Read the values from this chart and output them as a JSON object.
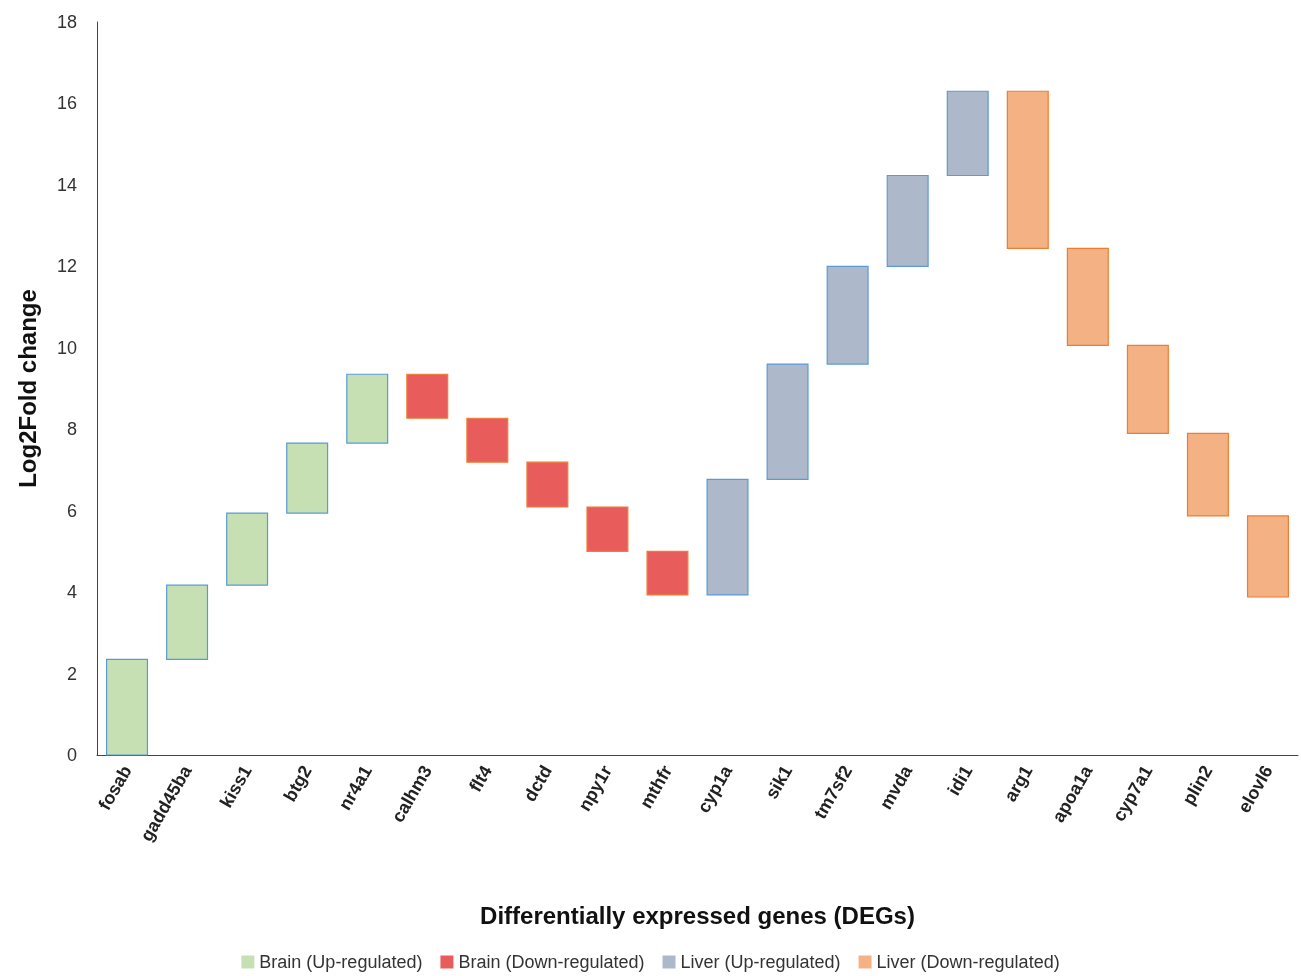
{
  "chart_data": {
    "type": "bar",
    "xlabel": "Differentially expressed genes (DEGs)",
    "ylabel": "Log2Fold change",
    "categories": [
      "fosab",
      "gadd45ba",
      "kiss1",
      "btg2",
      "nr4a1",
      "calhm3",
      "flt4",
      "dctd",
      "npy1r",
      "mthfr",
      "cyp1a",
      "sik1",
      "tm7sf2",
      "mvda",
      "idi1",
      "arg1",
      "apoa1a",
      "cyp7a1",
      "plin2",
      "elovl6"
    ],
    "ylim": [
      0,
      18
    ],
    "yticks": [
      0,
      2,
      4,
      6,
      8,
      10,
      12,
      14,
      16,
      18
    ],
    "grid": false,
    "legend": "bottom",
    "series": [
      {
        "name": "Brain (Up-regulated)",
        "color": "#c6e0b4",
        "base": [
          0,
          2.35,
          4.17,
          5.94,
          7.66,
          null,
          null,
          null,
          null,
          null,
          null,
          null,
          null,
          null,
          null,
          null,
          null,
          null,
          null,
          null
        ],
        "values": [
          2.35,
          1.82,
          1.77,
          1.72,
          1.69,
          null,
          null,
          null,
          null,
          null,
          null,
          null,
          null,
          null,
          null,
          null,
          null,
          null,
          null,
          null
        ]
      },
      {
        "name": "Brain (Down-regulated)",
        "color": "#e85c5c",
        "base": [
          null,
          null,
          null,
          null,
          null,
          9.35,
          8.27,
          7.19,
          6.09,
          5.0,
          null,
          null,
          null,
          null,
          null,
          null,
          null,
          null,
          null,
          null
        ],
        "values": [
          null,
          null,
          null,
          null,
          null,
          -1.08,
          -1.08,
          -1.1,
          -1.09,
          -1.07,
          null,
          null,
          null,
          null,
          null,
          null,
          null,
          null,
          null,
          null
        ]
      },
      {
        "name": "Liver (Up-regulated)",
        "color": "#adb9ca",
        "base": [
          null,
          null,
          null,
          null,
          null,
          null,
          null,
          null,
          null,
          null,
          3.93,
          6.77,
          9.6,
          12.0,
          14.23,
          null,
          null,
          null,
          null,
          null
        ],
        "values": [
          null,
          null,
          null,
          null,
          null,
          null,
          null,
          null,
          null,
          null,
          2.84,
          2.83,
          2.4,
          2.23,
          2.07,
          null,
          null,
          null,
          null,
          null
        ]
      },
      {
        "name": "Liver (Down-regulated)",
        "color": "#f4b183",
        "base": [
          null,
          null,
          null,
          null,
          null,
          null,
          null,
          null,
          null,
          null,
          null,
          null,
          null,
          null,
          null,
          16.3,
          12.44,
          10.06,
          7.9,
          5.87
        ],
        "values": [
          null,
          null,
          null,
          null,
          null,
          null,
          null,
          null,
          null,
          null,
          null,
          null,
          null,
          null,
          null,
          -3.86,
          -2.38,
          -2.16,
          -2.03,
          -1.99
        ]
      }
    ]
  }
}
